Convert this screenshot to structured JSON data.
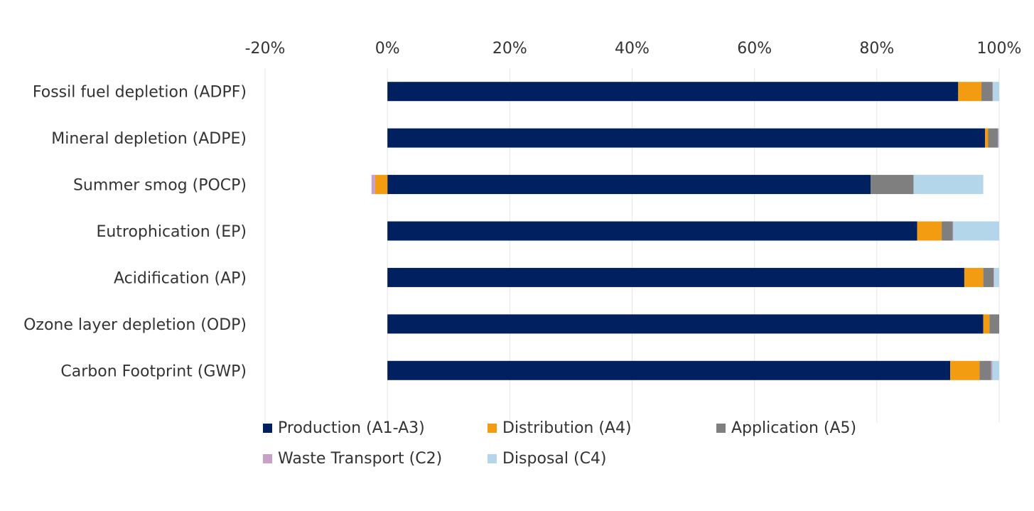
{
  "chart_data": {
    "type": "bar",
    "orientation": "horizontal",
    "stacked": true,
    "title": "",
    "xlabel": "",
    "ylabel": "",
    "xlim": [
      -20,
      100
    ],
    "x_ticks": [
      -20,
      0,
      20,
      40,
      60,
      80,
      100
    ],
    "x_tick_labels": [
      "-20%",
      "0%",
      "20%",
      "40%",
      "60%",
      "80%",
      "100%"
    ],
    "x_axis_position": "top",
    "grid": true,
    "legend_position": "bottom",
    "categories": [
      "Fossil fuel depletion (ADPF)",
      "Mineral depletion (ADPE)",
      "Summer smog (POCP)",
      "Eutrophication (EP)",
      "Acidification (AP)",
      "Ozone layer depletion (ODP)",
      "Carbon Footprint (GWP)"
    ],
    "series": [
      {
        "name": "Production (A1-A3)",
        "color": "#002060",
        "values": [
          93.3,
          97.7,
          79.0,
          86.6,
          94.3,
          97.4,
          92.0
        ]
      },
      {
        "name": "Distribution (A4)",
        "color": "#F39C12",
        "values": [
          3.8,
          0.5,
          -2.0,
          4.0,
          3.1,
          1.0,
          4.8
        ]
      },
      {
        "name": "Application (A5)",
        "color": "#7F7F7F",
        "values": [
          1.8,
          1.6,
          7.0,
          1.8,
          1.7,
          1.6,
          1.9
        ]
      },
      {
        "name": "Waste Transport (C2)",
        "color": "#C9A0C8",
        "values": [
          0.1,
          0.1,
          -0.6,
          0.1,
          0.1,
          0.0,
          0.2
        ]
      },
      {
        "name": "Disposal (C4)",
        "color": "#B4D6EA",
        "values": [
          1.0,
          0.1,
          11.4,
          7.5,
          0.8,
          0.0,
          1.1
        ]
      }
    ]
  }
}
